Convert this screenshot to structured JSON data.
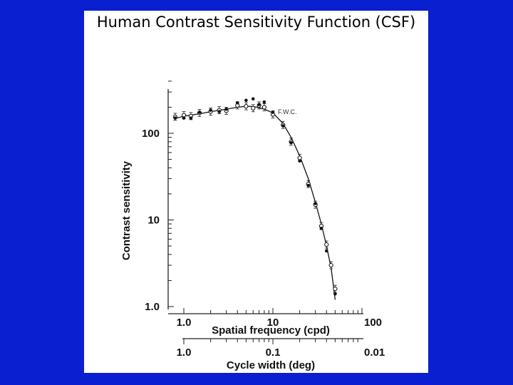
{
  "slide": {
    "background_color": "#0a1fd0",
    "panel_color": "#ffffff"
  },
  "chart_data": {
    "type": "scatter",
    "title": "Human Contrast Sensitivity Function (CSF)",
    "ylabel": "Contrast sensitivity",
    "xlabel": "Spatial frequency (cpd)",
    "x2label": "Cycle width (deg)",
    "log_x": true,
    "log_y": true,
    "xlim": [
      0.8,
      100
    ],
    "ylim": [
      1.0,
      450
    ],
    "x_ticks": [
      "1.0",
      "10",
      "100"
    ],
    "x2_ticks": [
      "1.0",
      "0.1",
      "0.01"
    ],
    "y_ticks": [
      "1.0",
      "10",
      "100"
    ],
    "annotation": "F.W.C.",
    "series": [
      {
        "marker": "open-circle",
        "points": [
          [
            0.8,
            155
          ],
          [
            1.0,
            162
          ],
          [
            1.2,
            158
          ],
          [
            1.5,
            172
          ],
          [
            2.0,
            178
          ],
          [
            2.5,
            185
          ],
          [
            3.0,
            182
          ],
          [
            4.0,
            210
          ],
          [
            5.0,
            205
          ],
          [
            6.0,
            195
          ],
          [
            7.0,
            210
          ],
          [
            8.0,
            200
          ],
          [
            10,
            165
          ],
          [
            13,
            125
          ],
          [
            16,
            80
          ],
          [
            20,
            52
          ],
          [
            25,
            26
          ],
          [
            30,
            15
          ],
          [
            35,
            8.5
          ],
          [
            40,
            5.2
          ],
          [
            45,
            3.0
          ],
          [
            50,
            1.6
          ]
        ]
      },
      {
        "marker": "filled-circle",
        "points": [
          [
            0.8,
            150
          ],
          [
            1.0,
            150
          ],
          [
            1.2,
            150
          ],
          [
            1.5,
            175
          ],
          [
            2.0,
            185
          ],
          [
            2.5,
            178
          ],
          [
            3.0,
            190
          ],
          [
            4.0,
            225
          ],
          [
            5.0,
            240
          ],
          [
            6.0,
            250
          ],
          [
            7.0,
            215
          ],
          [
            8.0,
            230
          ],
          [
            10,
            175
          ],
          [
            13,
            122
          ],
          [
            16,
            78
          ],
          [
            20,
            48
          ],
          [
            25,
            25
          ],
          [
            30,
            15.5
          ],
          [
            35,
            8.0
          ],
          [
            40,
            4.4
          ],
          [
            50,
            1.4
          ]
        ]
      }
    ],
    "fit_curve": [
      [
        0.8,
        148
      ],
      [
        1.0,
        158
      ],
      [
        1.5,
        168
      ],
      [
        2.0,
        178
      ],
      [
        3.0,
        190
      ],
      [
        4.0,
        200
      ],
      [
        5.0,
        205
      ],
      [
        6.0,
        204
      ],
      [
        7.0,
        198
      ],
      [
        8.0,
        190
      ],
      [
        10,
        172
      ],
      [
        13,
        130
      ],
      [
        16,
        90
      ],
      [
        20,
        55
      ],
      [
        25,
        30
      ],
      [
        30,
        16
      ],
      [
        35,
        9
      ],
      [
        40,
        5
      ],
      [
        45,
        2.8
      ],
      [
        50,
        1.2
      ]
    ]
  }
}
